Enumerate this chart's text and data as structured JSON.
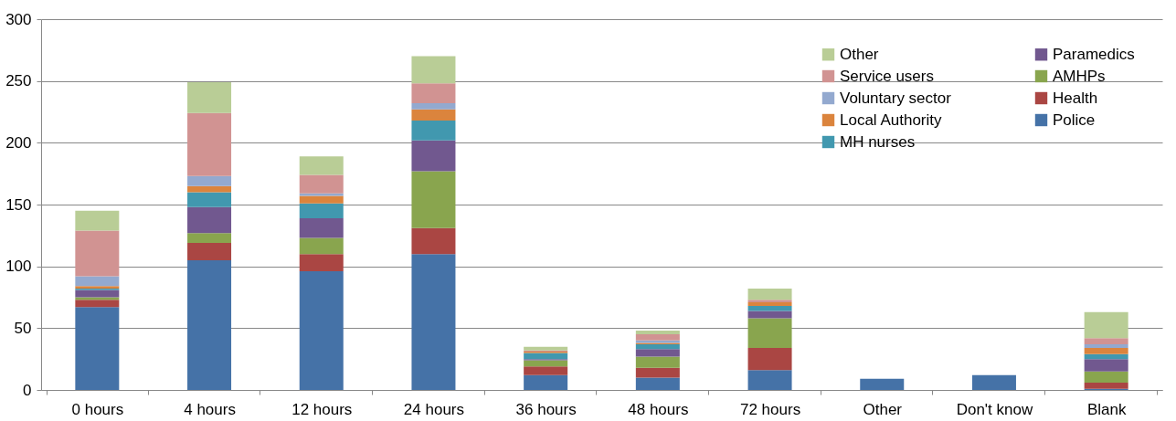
{
  "chart_data": {
    "type": "bar",
    "stacked": true,
    "categories": [
      "0 hours",
      "4 hours",
      "12 hours",
      "24 hours",
      "36 hours",
      "48 hours",
      "72 hours",
      "Other",
      "Don't know",
      "Blank"
    ],
    "series": [
      {
        "name": "Police",
        "color": "#4572a7",
        "values": [
          67,
          105,
          96,
          110,
          12,
          10,
          16,
          9,
          12,
          1
        ]
      },
      {
        "name": "Health",
        "color": "#aa4643",
        "values": [
          6,
          14,
          14,
          21,
          7,
          8,
          18,
          0,
          0,
          5
        ]
      },
      {
        "name": "AMHPs",
        "color": "#89a54e",
        "values": [
          2,
          8,
          13,
          46,
          5,
          9,
          24,
          0,
          0,
          9
        ]
      },
      {
        "name": "Paramedics",
        "color": "#71588f",
        "values": [
          6,
          21,
          16,
          25,
          1,
          6,
          6,
          0,
          0,
          10
        ]
      },
      {
        "name": "MH nurses",
        "color": "#4198af",
        "values": [
          1,
          12,
          12,
          16,
          5,
          4,
          4,
          0,
          0,
          4
        ]
      },
      {
        "name": "Local Authority",
        "color": "#db843d",
        "values": [
          2,
          5,
          6,
          9,
          1,
          1,
          3,
          0,
          0,
          5
        ]
      },
      {
        "name": "Voluntary sector",
        "color": "#93a9cf",
        "values": [
          8,
          8,
          2,
          5,
          0,
          2,
          0,
          0,
          0,
          3
        ]
      },
      {
        "name": "Service users",
        "color": "#d19392",
        "values": [
          37,
          51,
          15,
          16,
          1,
          5,
          2,
          0,
          0,
          5
        ]
      },
      {
        "name": "Other",
        "color": "#b9cd96",
        "values": [
          16,
          25,
          15,
          22,
          3,
          3,
          9,
          0,
          0,
          21
        ]
      }
    ],
    "ylim": [
      0,
      300
    ],
    "yticks": [
      0,
      50,
      100,
      150,
      200,
      250,
      300
    ],
    "grid": "y",
    "legend": "top right"
  }
}
